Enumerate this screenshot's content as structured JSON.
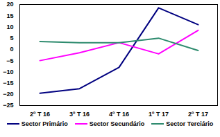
{
  "chart_data": {
    "type": "line",
    "categories": [
      "2º T 16",
      "3º T 16",
      "4º T 16",
      "1º T 17",
      "2º T 17"
    ],
    "series": [
      {
        "name": "Sector Primário",
        "color": "#000080",
        "values": [
          -19.5,
          -17.5,
          -8,
          18.5,
          11
        ]
      },
      {
        "name": "Sector Secundário",
        "color": "#ff00ff",
        "values": [
          -5,
          -1.5,
          3,
          -2,
          8.5
        ]
      },
      {
        "name": "Sector Terciário",
        "color": "#2e8b6e",
        "values": [
          3.5,
          3,
          3,
          5,
          -0.5
        ]
      }
    ],
    "ylim": [
      -25,
      20
    ],
    "yticks": [
      -25,
      -20,
      -15,
      -10,
      -5,
      0,
      5,
      10,
      15,
      20
    ],
    "grid": false,
    "legend": "bottom"
  }
}
